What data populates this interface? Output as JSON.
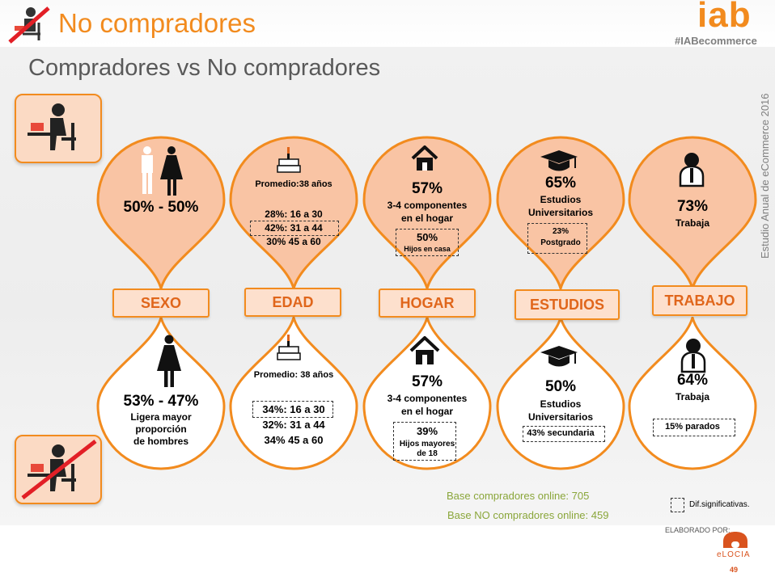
{
  "header": {
    "title": "No compradores",
    "subtitle": "Compradores vs No compradores",
    "brand": "iab",
    "hashtag": "#IABecommerce",
    "vertical_text": "Estudio Anual de eCommerce 2016"
  },
  "colors": {
    "accent": "#f28b1e",
    "fill_top": "#f9c4a4",
    "label_bg": "#fde0cd",
    "green": "#8aa63a"
  },
  "categories": {
    "sexo": "SEXO",
    "edad": "EDAD",
    "hogar": "HOGAR",
    "estudios": "ESTUDIOS",
    "trabajo": "TRABAJO"
  },
  "compradores": {
    "sexo": {
      "icon": "man-woman-icon",
      "value": "50% - 50%"
    },
    "edad": {
      "icon": "birthday-cake-icon",
      "promedio": "Promedio:38 años",
      "r1": "28%: 16 a 30",
      "r2": "42%: 31 a 44",
      "r3": "30% 45 a 60"
    },
    "hogar": {
      "icon": "house-icon",
      "value": "57%",
      "line1": "3-4 componentes",
      "line2": "en el hogar",
      "box_value": "50%",
      "box_label": "Hijos en casa"
    },
    "estudios": {
      "icon": "graduation-cap-icon",
      "value": "65%",
      "line1": "Estudios",
      "line2": "Universitarios",
      "box_value": "23%",
      "box_label": "Postgrado"
    },
    "trabajo": {
      "icon": "worker-icon",
      "value": "73%",
      "line1": "Trabaja"
    }
  },
  "no_compradores": {
    "sexo": {
      "icon": "woman-icon",
      "value": "53% - 47%",
      "line1": "Ligera mayor",
      "line2": "proporción",
      "line3": "de hombres"
    },
    "edad": {
      "icon": "birthday-cake-icon",
      "promedio": "Promedio: 38 años",
      "r1": "34%: 16 a 30",
      "r2": "32%: 31 a 44",
      "r3": "34% 45 a 60"
    },
    "hogar": {
      "icon": "house-icon",
      "value": "57%",
      "line1": "3-4 componentes",
      "line2": "en el hogar",
      "box_value": "39%",
      "box_label1": "Hijos mayores",
      "box_label2": "de 18"
    },
    "estudios": {
      "icon": "graduation-cap-icon",
      "value": "50%",
      "line1": "Estudios",
      "line2": "Universitarios",
      "box_label": "43% secundaria"
    },
    "trabajo": {
      "icon": "worker-icon",
      "value": "64%",
      "line1": "Trabaja",
      "box_label": "15%  parados"
    }
  },
  "footer": {
    "base_compradores": "Base compradores  online: 705",
    "base_no": "Base NO  compradores online: 459",
    "legend": "Dif.significativas.",
    "elaborado": "ELABORADO POR:",
    "elocia": "eLOCIA",
    "page": "49"
  }
}
